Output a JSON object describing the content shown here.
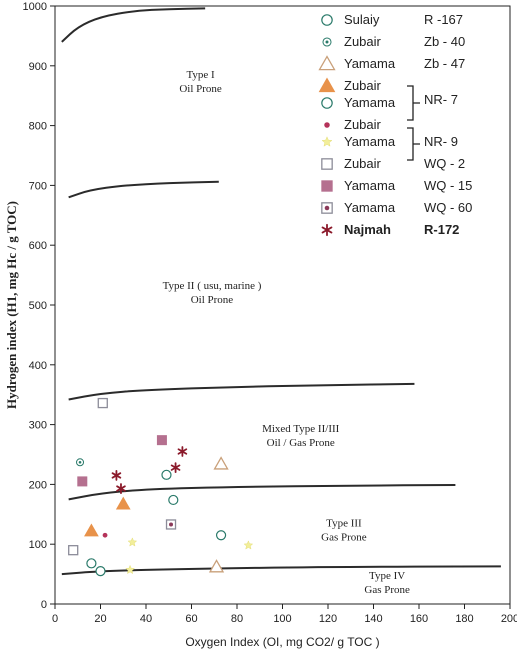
{
  "chart_data": {
    "type": "scatter",
    "title": "",
    "xlabel": "Oxygen Index (OI, mg CO2/ g TOC )",
    "ylabel": "Hydrogen index (H1, mg Hc / g TOC)",
    "xlim": [
      0,
      200
    ],
    "ylim": [
      0,
      1000
    ],
    "x_ticks": [
      0,
      20,
      40,
      60,
      80,
      100,
      120,
      140,
      160,
      180,
      200
    ],
    "y_ticks": [
      0,
      100,
      200,
      300,
      400,
      500,
      600,
      700,
      800,
      900,
      1000
    ],
    "grid": false,
    "legend_position": "top-right",
    "colors": {
      "teal": "#2a7a6a",
      "tan": "#c9a07a",
      "orange": "#e8924a",
      "darkred": "#8b1a2b",
      "yellow": "#f2ee9a",
      "gray": "#8c8c99",
      "mauve": "#b5708f"
    },
    "boundary_curves": [
      {
        "name": "Type I boundary",
        "points": [
          [
            3,
            940
          ],
          [
            10,
            965
          ],
          [
            20,
            982
          ],
          [
            35,
            992
          ],
          [
            50,
            995
          ],
          [
            66,
            996
          ]
        ]
      },
      {
        "name": "Type II boundary",
        "points": [
          [
            6,
            680
          ],
          [
            15,
            692
          ],
          [
            30,
            700
          ],
          [
            50,
            704
          ],
          [
            72,
            706
          ]
        ]
      },
      {
        "name": "Type II-III boundary",
        "points": [
          [
            6,
            342
          ],
          [
            20,
            352
          ],
          [
            40,
            358
          ],
          [
            80,
            363
          ],
          [
            120,
            366
          ],
          [
            158,
            368
          ]
        ]
      },
      {
        "name": "Type III boundary",
        "points": [
          [
            6,
            175
          ],
          [
            20,
            185
          ],
          [
            40,
            192
          ],
          [
            80,
            196
          ],
          [
            130,
            198
          ],
          [
            176,
            199
          ]
        ]
      },
      {
        "name": "Type IV boundary",
        "points": [
          [
            3,
            50
          ],
          [
            20,
            55
          ],
          [
            60,
            59
          ],
          [
            120,
            62
          ],
          [
            196,
            63
          ]
        ]
      }
    ],
    "region_labels": [
      {
        "lines": [
          "Type I",
          "Oil Prone"
        ],
        "x": 64,
        "y": 880,
        "font": "serif"
      },
      {
        "lines": [
          "Type II ( usu, marine )",
          "Oil Prone"
        ],
        "x": 69,
        "y": 527,
        "font": "serif"
      },
      {
        "lines": [
          "Mixed Type II/III",
          "Oil / Gas Prone"
        ],
        "x": 108,
        "y": 288,
        "font": "serif"
      },
      {
        "lines": [
          "Type III",
          "Gas Prone"
        ],
        "x": 127,
        "y": 130,
        "font": "serif"
      },
      {
        "lines": [
          "Type IV",
          "Gas Prone"
        ],
        "x": 146,
        "y": 42,
        "font": "serif"
      }
    ],
    "series": [
      {
        "name": "Sulaiy",
        "well": "R -167",
        "marker": "circle-open",
        "color": "#2a7a6a",
        "points": [
          [
            16,
            68
          ],
          [
            20,
            55
          ]
        ]
      },
      {
        "name": "Zubair",
        "well": "Zb - 40",
        "marker": "circle-dot",
        "color": "#2a7a6a",
        "points": [
          [
            11,
            237
          ]
        ]
      },
      {
        "name": "Yamama",
        "well": "Zb - 47",
        "marker": "triangle-open",
        "color": "#c9a07a",
        "points": [
          [
            73,
            234
          ],
          [
            71,
            62
          ]
        ]
      },
      {
        "name": "Zubair",
        "well": "NR- 7",
        "marker": "triangle-filled",
        "color": "#e8924a",
        "points": [
          [
            16,
            122
          ],
          [
            30,
            167
          ]
        ]
      },
      {
        "name": "Yamama",
        "well": "NR- 7",
        "marker": "circle-open",
        "color": "#2a7a6a",
        "points": [
          [
            49,
            216
          ],
          [
            52,
            174
          ],
          [
            73,
            115
          ]
        ]
      },
      {
        "name": "Zubair",
        "well": "NR- 9",
        "marker": "small-dot",
        "color": "#b5335a",
        "points": [
          [
            22,
            115
          ]
        ]
      },
      {
        "name": "Yamama",
        "well": "NR- 9",
        "marker": "yellow-star",
        "color": "#f2ee9a",
        "points": [
          [
            34,
            103
          ],
          [
            33,
            57
          ],
          [
            85,
            98
          ]
        ]
      },
      {
        "name": "Zubair",
        "well": "WQ - 2",
        "marker": "square-open",
        "color": "#8c8c99",
        "points": [
          [
            21,
            336
          ],
          [
            8,
            90
          ]
        ]
      },
      {
        "name": "Yamama",
        "well": "WQ - 15",
        "marker": "square-filled",
        "color": "#b5708f",
        "points": [
          [
            47,
            274
          ],
          [
            12,
            205
          ]
        ]
      },
      {
        "name": "Yamama",
        "well": "WQ - 60",
        "marker": "square-dot",
        "color": "#8c8c99",
        "points": [
          [
            51,
            133
          ]
        ]
      },
      {
        "name": "Najmah",
        "well": "R-172",
        "marker": "asterisk",
        "color": "#8b1a2b",
        "points": [
          [
            56,
            255
          ],
          [
            53,
            228
          ],
          [
            27,
            215
          ],
          [
            29,
            193
          ]
        ]
      }
    ],
    "legend_bold": [
      "Najmah",
      "R-172"
    ]
  }
}
